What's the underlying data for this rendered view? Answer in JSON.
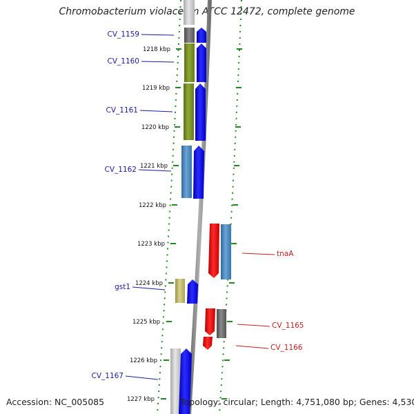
{
  "header": {
    "title": "Chromobacterium violaceum ATCC 12472, complete genome"
  },
  "footer": {
    "accession": "Accession: NC_005085",
    "topology": "Topology: circular; Length: 4,751,080 bp; Genes: 4,530"
  },
  "colors": {
    "forward_label": "#1a1aa8",
    "reverse_label": "#c81e1e",
    "backbone": "#8a8a8a",
    "tick": "#1e8a1e",
    "gene_blue": "#1010ee",
    "gene_red": "#ee1010",
    "gene_steelblue": "#4a86bd",
    "gene_olive": "#7a9128",
    "gene_gray": "#6b6b6b",
    "gene_lightgray": "#c8c8c8",
    "gene_khaki": "#bdb76b"
  },
  "map": {
    "kbp_labels": [
      "1218 kbp",
      "1219 kbp",
      "1220 kbp",
      "1221 kbp",
      "1222 kbp",
      "1223 kbp",
      "1224 kbp",
      "1225 kbp",
      "1226 kbp",
      "1227 kbp"
    ],
    "gene_labels": [
      {
        "text": "CV_1159",
        "strand": "forward"
      },
      {
        "text": "CV_1160",
        "strand": "forward"
      },
      {
        "text": "CV_1161",
        "strand": "forward"
      },
      {
        "text": "CV_1162",
        "strand": "forward"
      },
      {
        "text": "gst1",
        "strand": "forward"
      },
      {
        "text": "CV_1167",
        "strand": "forward"
      },
      {
        "text": "tnaA",
        "strand": "reverse"
      },
      {
        "text": "CV_1165",
        "strand": "reverse"
      },
      {
        "text": "CV_1166",
        "strand": "reverse"
      }
    ]
  }
}
